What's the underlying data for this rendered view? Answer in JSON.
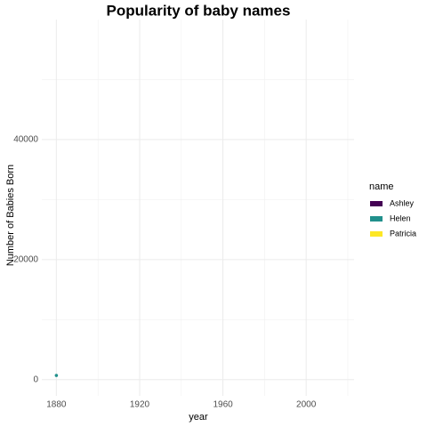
{
  "chart_data": {
    "type": "line",
    "title": "Popularity of baby names",
    "x_label": "year",
    "y_label": "Number of Babies Born",
    "legend_title": "name",
    "legend": "right",
    "x": [
      1880
    ],
    "series": [
      {
        "name": "Ashley",
        "color": "#440154",
        "values": [
          null
        ]
      },
      {
        "name": "Helen",
        "color": "#21908C",
        "values": [
          700
        ]
      },
      {
        "name": "Patricia",
        "color": "#FDE725",
        "values": [
          null
        ]
      }
    ],
    "xlim": [
      1873,
      2023
    ],
    "xticks": [
      1880,
      1920,
      1960,
      2000
    ],
    "x_minor_ticks": [
      1900,
      1940,
      1980,
      2020
    ],
    "ylim": [
      -2700,
      60000
    ],
    "yticks": [
      0,
      20000,
      40000
    ],
    "y_minor_ticks": [
      10000,
      30000,
      50000
    ],
    "grid": true
  }
}
